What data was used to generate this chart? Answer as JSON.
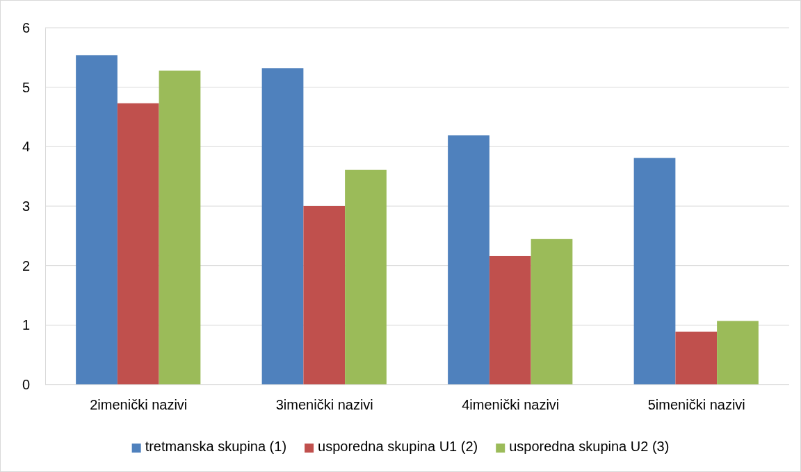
{
  "chart_data": {
    "type": "bar",
    "categories": [
      "2imenički nazivi",
      "3imenički nazivi",
      "4imenički nazivi",
      "5imenički nazivi"
    ],
    "series": [
      {
        "name": "tretmanska skupina (1)",
        "color": "#4f81bd",
        "values": [
          5.54,
          5.32,
          4.19,
          3.81
        ]
      },
      {
        "name": "usporedna skupina U1 (2)",
        "color": "#c0504d",
        "values": [
          4.73,
          3.0,
          2.16,
          0.89
        ]
      },
      {
        "name": "usporedna skupina U2 (3)",
        "color": "#9bbb59",
        "values": [
          5.28,
          3.61,
          2.45,
          1.07
        ]
      }
    ],
    "ylim": [
      0,
      6
    ],
    "yticks": [
      0,
      1,
      2,
      3,
      4,
      5,
      6
    ],
    "grid": "y",
    "legend": "bottom"
  }
}
